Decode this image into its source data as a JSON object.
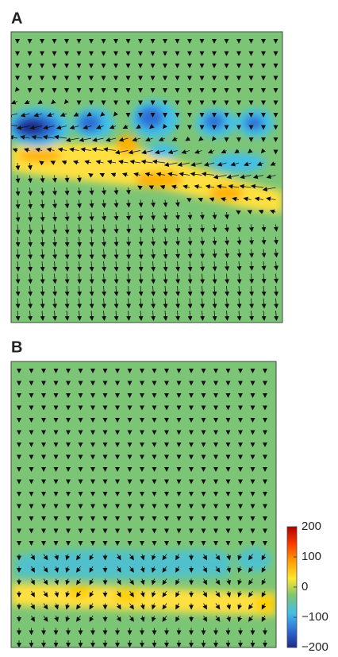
{
  "panels": [
    {
      "label": "A"
    },
    {
      "label": "B"
    }
  ],
  "colorbar": {
    "lim": [
      -200,
      200
    ],
    "ticks": [
      200,
      100,
      0,
      {
        "value": -100,
        "label": "−100"
      },
      {
        "value": -200,
        "label": "−200"
      }
    ],
    "colors": [
      "#b00000",
      "#ff3a00",
      "#ff9d00",
      "#ffe82a",
      "#7cc576",
      "#42c0e8",
      "#2f6fd6",
      "#1c2a8a"
    ]
  }
}
